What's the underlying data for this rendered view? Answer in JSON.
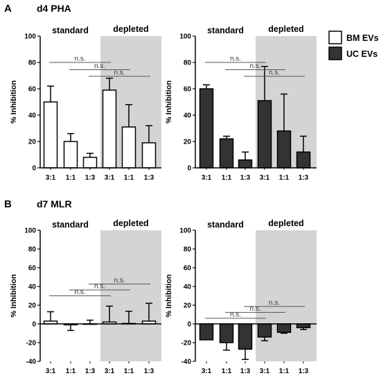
{
  "panels": [
    {
      "letter": "A",
      "title": "d4 PHA"
    },
    {
      "letter": "B",
      "title": "d7 MLR"
    }
  ],
  "legend": [
    {
      "label": "BM EVs",
      "color": "#ffffff"
    },
    {
      "label": "UC EVs",
      "color": "#333333"
    }
  ],
  "colors": {
    "shaded_region": "#d4d4d4",
    "bm_fill": "#ffffff",
    "uc_fill": "#333333",
    "outline": "#000000",
    "ns_line": "#555555"
  },
  "chart_data": [
    {
      "type": "bar",
      "panel": "A",
      "series_ref": "BM EVs",
      "categories": [
        "3:1",
        "1:1",
        "1:3",
        "3:1",
        "1:1",
        "1:3"
      ],
      "groups": [
        "standard",
        "depleted"
      ],
      "values": [
        50,
        20,
        8,
        59,
        31,
        19
      ],
      "errors": [
        12,
        6,
        3,
        9,
        17,
        13
      ],
      "ylabel": "% Inhibition",
      "ylim": [
        0,
        100
      ],
      "yticks": [
        0,
        20,
        40,
        60,
        80,
        100
      ],
      "annotation": "n.s.",
      "comparisons": [
        [
          0,
          3
        ],
        [
          1,
          4
        ],
        [
          2,
          5
        ]
      ]
    },
    {
      "type": "bar",
      "panel": "A",
      "series_ref": "UC EVs",
      "categories": [
        "3:1",
        "1:1",
        "1:3",
        "3:1",
        "1:1",
        "1:3"
      ],
      "groups": [
        "standard",
        "depleted"
      ],
      "values": [
        60,
        22,
        6,
        51,
        28,
        12
      ],
      "errors": [
        3,
        2,
        6,
        26,
        28,
        12
      ],
      "ylabel": "% Inhibition",
      "ylim": [
        0,
        100
      ],
      "yticks": [
        0,
        20,
        40,
        60,
        80,
        100
      ],
      "annotation": "n.s.",
      "comparisons": [
        [
          0,
          3
        ],
        [
          1,
          4
        ],
        [
          2,
          5
        ]
      ]
    },
    {
      "type": "bar",
      "panel": "B",
      "series_ref": "BM EVs",
      "categories": [
        "3:1",
        "1:1",
        "1:3",
        "3:1",
        "1:1",
        "1:3"
      ],
      "groups": [
        "standard",
        "depleted"
      ],
      "values": [
        3,
        -1,
        0,
        2,
        0.5,
        3
      ],
      "errors": [
        10,
        6,
        4,
        17,
        13,
        19
      ],
      "ylabel": "% Inhibition",
      "ylim": [
        -40,
        100
      ],
      "yticks": [
        -40,
        -20,
        0,
        20,
        40,
        60,
        80,
        100
      ],
      "annotation": "n.s.",
      "comparisons": [
        [
          0,
          3
        ],
        [
          1,
          4
        ],
        [
          2,
          5
        ]
      ]
    },
    {
      "type": "bar",
      "panel": "B",
      "series_ref": "UC EVs",
      "categories": [
        "3:1",
        "1:1",
        "1:3",
        "3:1",
        "1:1",
        "1:3"
      ],
      "groups": [
        "standard",
        "depleted"
      ],
      "values": [
        -17,
        -20,
        -27,
        -14,
        -9,
        -4
      ],
      "errors": [
        0,
        8,
        11,
        4,
        1,
        2
      ],
      "ylabel": "% Inhibition",
      "ylim": [
        -40,
        100
      ],
      "yticks": [
        -40,
        -20,
        0,
        20,
        40,
        60,
        80,
        100
      ],
      "annotation": "n.s.",
      "comparisons": [
        [
          0,
          3
        ],
        [
          1,
          4
        ],
        [
          2,
          5
        ]
      ]
    }
  ]
}
